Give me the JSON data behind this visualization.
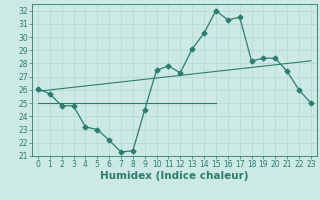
{
  "xlabel": "Humidex (Indice chaleur)",
  "xlim": [
    -0.5,
    23.5
  ],
  "ylim": [
    21,
    32.5
  ],
  "yticks": [
    21,
    22,
    23,
    24,
    25,
    26,
    27,
    28,
    29,
    30,
    31,
    32
  ],
  "xticks": [
    0,
    1,
    2,
    3,
    4,
    5,
    6,
    7,
    8,
    9,
    10,
    11,
    12,
    13,
    14,
    15,
    16,
    17,
    18,
    19,
    20,
    21,
    22,
    23
  ],
  "line1_x": [
    0,
    1,
    2,
    3,
    4,
    5,
    6,
    7,
    8,
    9,
    10,
    11,
    12,
    13,
    14,
    15,
    16,
    17,
    18,
    19,
    20,
    21,
    22,
    23
  ],
  "line1_y": [
    26.1,
    25.7,
    24.8,
    24.8,
    23.2,
    23.0,
    22.2,
    21.3,
    21.4,
    24.5,
    27.5,
    27.8,
    27.3,
    29.1,
    30.3,
    32.0,
    31.3,
    31.5,
    28.2,
    28.4,
    28.4,
    27.4,
    26.0,
    25.0
  ],
  "line2_x": [
    0,
    15
  ],
  "line2_y": [
    25.0,
    25.0
  ],
  "line3_x": [
    0,
    23
  ],
  "line3_y": [
    25.9,
    28.2
  ],
  "line_color": "#2d7d6e",
  "bg_color": "#cce9e5",
  "grid_color": "#b0d8d3",
  "font_color": "#2d7d6e",
  "tick_fontsize": 5.5,
  "xlabel_fontsize": 7.5,
  "marker": "D",
  "marker_size": 2.5
}
